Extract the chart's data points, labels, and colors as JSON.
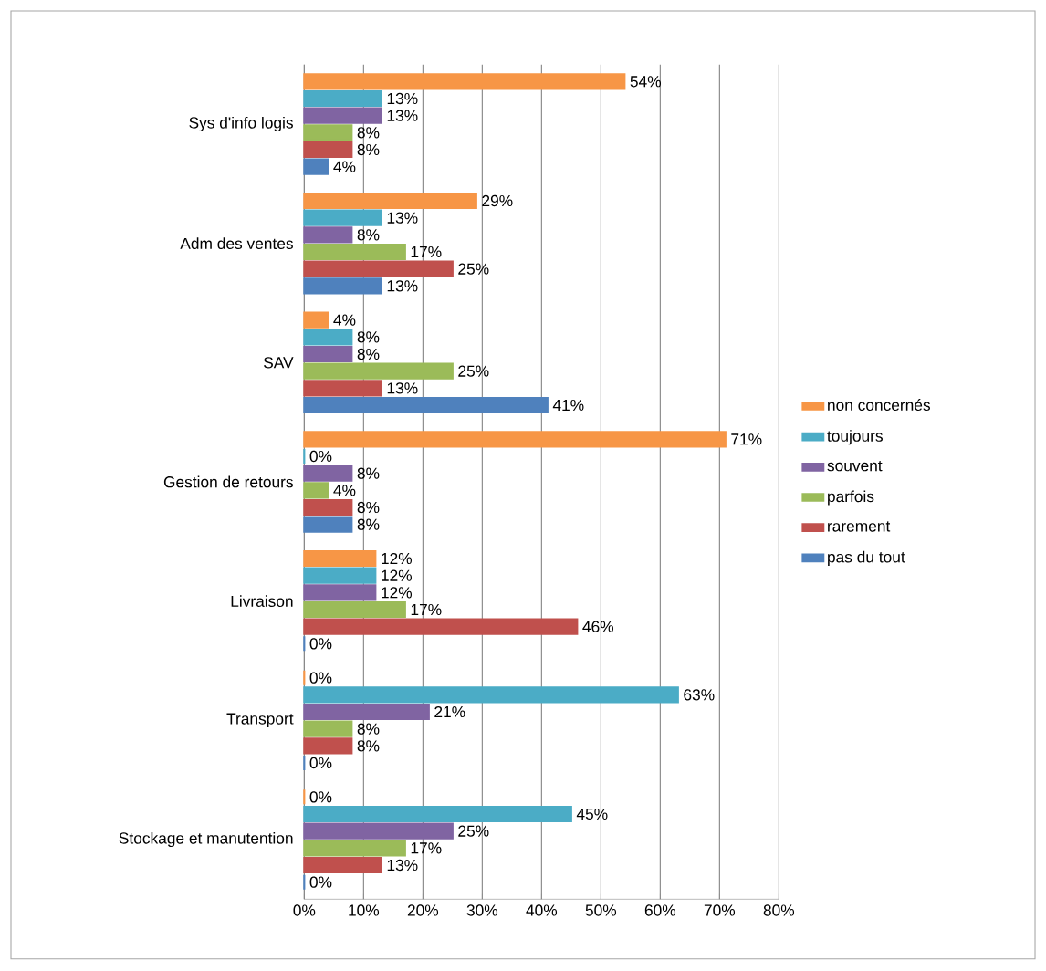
{
  "chart_data": {
    "type": "bar",
    "orientation": "horizontal",
    "categories": [
      "Sys d'info logis",
      "Adm des ventes",
      "SAV",
      "Gestion de retours",
      "Livraison",
      "Transport",
      "Stockage et manutention"
    ],
    "series": [
      {
        "name": "pas du tout",
        "color": "#4f81bd",
        "values": [
          4,
          13,
          41,
          8,
          0,
          0,
          0
        ],
        "value_labels": [
          "4%",
          "13%",
          "41%",
          "8%",
          "0%",
          "0%",
          "0%"
        ]
      },
      {
        "name": "rarement",
        "color": "#c0504d",
        "values": [
          8,
          25,
          13,
          8,
          46,
          8,
          13
        ],
        "value_labels": [
          "8%",
          "25%",
          "13%",
          "8%",
          "46%",
          "8%",
          "13%"
        ]
      },
      {
        "name": "parfois",
        "color": "#9bbb59",
        "values": [
          8,
          17,
          25,
          4,
          17,
          8,
          17
        ],
        "value_labels": [
          "8%",
          "17%",
          "25%",
          "4%",
          "17%",
          "8%",
          "17%"
        ]
      },
      {
        "name": "souvent",
        "color": "#8064a2",
        "values": [
          13,
          8,
          8,
          8,
          12,
          21,
          25
        ],
        "value_labels": [
          "13%",
          "8%",
          "8%",
          "8%",
          "12%",
          "21%",
          "25%"
        ]
      },
      {
        "name": "toujours",
        "color": "#4bacc6",
        "values": [
          13,
          13,
          8,
          0,
          12,
          63,
          45
        ],
        "value_labels": [
          "13%",
          "13%",
          "8%",
          "0%",
          "12%",
          "63%",
          "45%"
        ]
      },
      {
        "name": "non concernés",
        "color": "#f79646",
        "values": [
          54,
          29,
          4,
          71,
          12,
          0,
          0
        ],
        "value_labels": [
          "54%",
          "29%",
          "4%",
          "71%",
          "12%",
          "0%",
          "0%"
        ]
      }
    ],
    "xlim": [
      0,
      80
    ],
    "xticks": [
      {
        "value": 0,
        "label": "0%"
      },
      {
        "value": 10,
        "label": "10%"
      },
      {
        "value": 20,
        "label": "20%"
      },
      {
        "value": 30,
        "label": "30%"
      },
      {
        "value": 40,
        "label": "40%"
      },
      {
        "value": 50,
        "label": "50%"
      },
      {
        "value": 60,
        "label": "60%"
      },
      {
        "value": 70,
        "label": "70%"
      },
      {
        "value": 80,
        "label": "80%"
      }
    ],
    "grid": "x",
    "legend": "right"
  }
}
